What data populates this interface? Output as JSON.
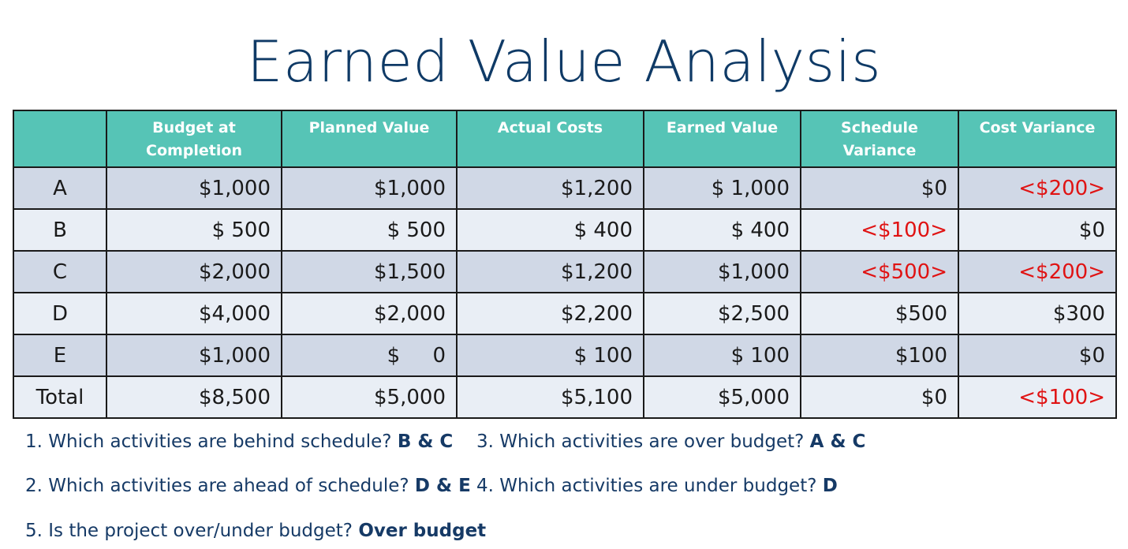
{
  "title": "Earned Value Analysis",
  "table": {
    "headers": [
      "",
      "Budget at Completion",
      "Planned Value",
      "Actual Costs",
      "Earned Value",
      "Schedule Variance",
      "Cost Variance"
    ],
    "rows": [
      {
        "label": "A",
        "bac": "$1,000",
        "pv": "$1,000",
        "ac": "$1,200",
        "ev": "$ 1,000",
        "sv": "$0",
        "cv": "<$200>"
      },
      {
        "label": "B",
        "bac": "$  500",
        "pv": "$  500",
        "ac": "$  400",
        "ev": "$  400",
        "sv": "<$100>",
        "cv": "$0"
      },
      {
        "label": "C",
        "bac": "$2,000",
        "pv": "$1,500",
        "ac": "$1,200",
        "ev": "$1,000",
        "sv": "<$500>",
        "cv": "<$200>"
      },
      {
        "label": "D",
        "bac": "$4,000",
        "pv": "$2,000",
        "ac": "$2,200",
        "ev": "$2,500",
        "sv": "$500",
        "cv": "$300"
      },
      {
        "label": "E",
        "bac": "$1,000",
        "pv": "$     0",
        "ac": "$  100",
        "ev": "$  100",
        "sv": "$100",
        "cv": "$0"
      },
      {
        "label": "Total",
        "bac": "$8,500",
        "pv": "$5,000",
        "ac": "$5,100",
        "ev": "$5,000",
        "sv": "$0",
        "cv": "<$100>"
      }
    ]
  },
  "questions": [
    {
      "q": "1. Which activities are behind schedule?",
      "a": "B & C"
    },
    {
      "q": "2. Which activities are ahead of schedule?",
      "a": "D & E"
    },
    {
      "q": "3. Which activities are over budget?",
      "a": "A & C"
    },
    {
      "q": "4. Which activities are under budget?",
      "a": "D"
    },
    {
      "q": "5. Is the project over/under budget?",
      "a": "Over budget"
    }
  ],
  "colors": {
    "title": "#0f3a66",
    "header_bg": "#56c4b6",
    "row_shade": "#d0d8e6",
    "row_light": "#e9eef5",
    "negative": "#e01313",
    "question_text": "#163a66"
  }
}
